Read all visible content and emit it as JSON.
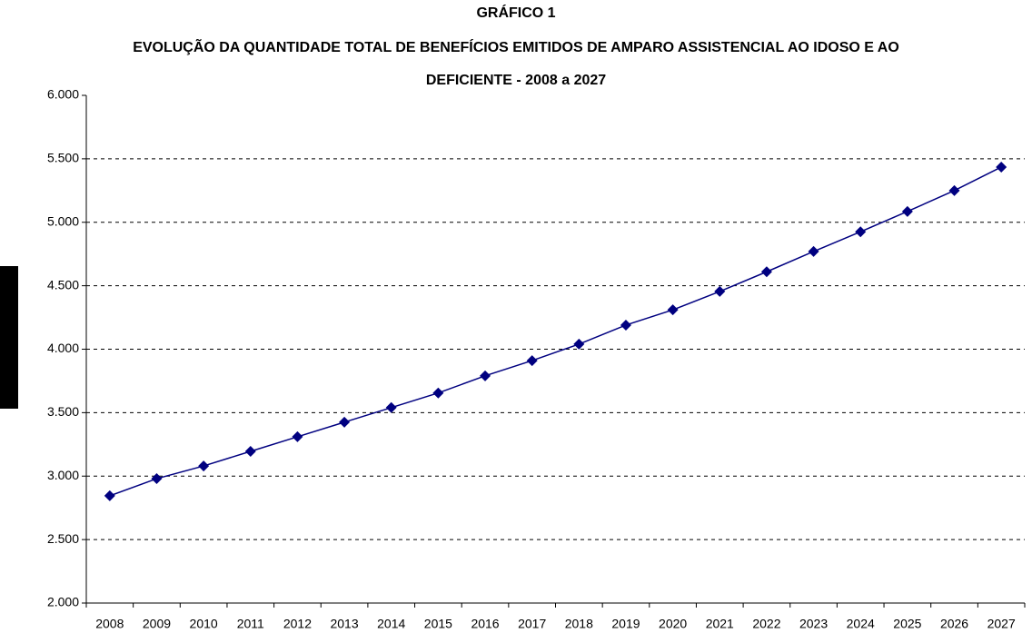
{
  "chart_data": {
    "type": "line",
    "title": "GRÁFICO 1",
    "subtitle": [
      "EVOLUÇÃO DA QUANTIDADE TOTAL DE BENEFÍCIOS EMITIDOS DE AMPARO ASSISTENCIAL AO IDOSO E AO",
      "DEFICIENTE -  2008 a 2027"
    ],
    "categories": [
      "2008",
      "2009",
      "2010",
      "2011",
      "2012",
      "2013",
      "2014",
      "2015",
      "2016",
      "2017",
      "2018",
      "2019",
      "2020",
      "2021",
      "2022",
      "2023",
      "2024",
      "2025",
      "2026",
      "2027"
    ],
    "series": [
      {
        "color": "#000080",
        "values": [
          2845,
          2980,
          3080,
          3195,
          3310,
          3425,
          3540,
          3655,
          3790,
          3910,
          4040,
          4190,
          4310,
          4455,
          4610,
          4770,
          4925,
          5085,
          5250,
          5435
        ]
      }
    ],
    "ylim": [
      2000,
      6000
    ],
    "yticks": [
      {
        "value": 2000,
        "label": "2.000"
      },
      {
        "value": 2500,
        "label": "2.500"
      },
      {
        "value": 3000,
        "label": "3.000"
      },
      {
        "value": 3500,
        "label": "3.500"
      },
      {
        "value": 4000,
        "label": "4.000"
      },
      {
        "value": 4500,
        "label": "4.500"
      },
      {
        "value": 5000,
        "label": "5.000"
      },
      {
        "value": 5500,
        "label": "5.500"
      },
      {
        "value": 6000,
        "label": "6.000"
      }
    ],
    "grid": true
  }
}
